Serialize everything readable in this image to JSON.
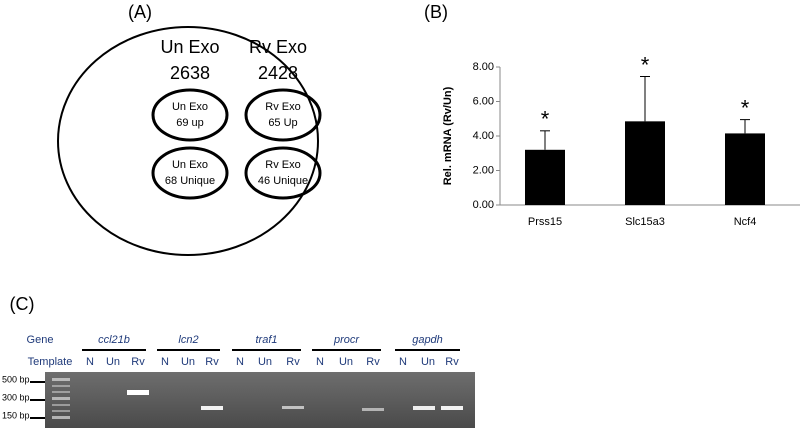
{
  "panel_a": {
    "label": "(A)",
    "groups": [
      {
        "name": "Un Exo",
        "count": "2638"
      },
      {
        "name": "Rv Exo",
        "count": "2428"
      }
    ],
    "ovals": [
      [
        "Un Exo",
        "69 up"
      ],
      [
        "Rv Exo",
        "65  Up"
      ],
      [
        "Un Exo",
        "68 Unique"
      ],
      [
        "Rv Exo",
        "46 Unique"
      ]
    ]
  },
  "chart_data": {
    "type": "bar",
    "panel_label": "(B)",
    "ylabel": "Rel. mRNA  (Rv/Un)",
    "categories": [
      "Prss15",
      "Slc15a3",
      "Ncf4"
    ],
    "values": [
      3.2,
      4.85,
      4.15
    ],
    "errors": [
      1.1,
      2.6,
      0.8
    ],
    "annotations": [
      "*",
      "*",
      "*"
    ],
    "color": "#000000",
    "grid": false,
    "ylim": [
      0,
      8
    ],
    "yticks": [
      {
        "value": 0,
        "label": "0.00"
      },
      {
        "value": 2,
        "label": "2.00"
      },
      {
        "value": 4,
        "label": "4.00"
      },
      {
        "value": 6,
        "label": "6.00"
      },
      {
        "value": 8,
        "label": "8.00"
      }
    ]
  },
  "panel_c": {
    "label": "(C)",
    "gene_header": "Gene",
    "template_header": "Template",
    "genes": [
      {
        "name": "ccl21b",
        "templates": [
          "N",
          "Un",
          "Rv"
        ]
      },
      {
        "name": "lcn2",
        "templates": [
          "N",
          "Un",
          "Rv"
        ]
      },
      {
        "name": "traf1",
        "templates": [
          "N",
          "Un",
          "Rv"
        ]
      },
      {
        "name": "procr",
        "templates": [
          "N",
          "Un",
          "Rv"
        ]
      },
      {
        "name": "gapdh",
        "templates": [
          "N",
          "Un",
          "Rv"
        ]
      }
    ],
    "ladder": [
      "500 bp",
      "300 bp",
      "150 bp"
    ]
  }
}
